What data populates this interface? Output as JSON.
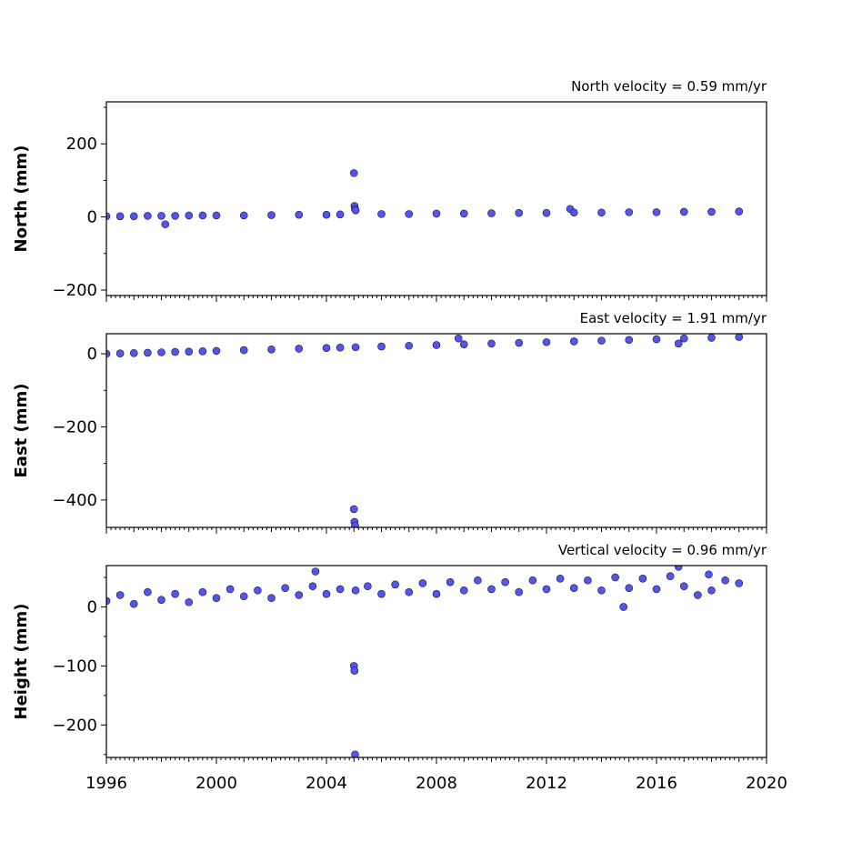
{
  "chart_data": [
    {
      "type": "scatter",
      "title": "North velocity = 0.59 mm/yr",
      "xlabel": "",
      "ylabel": "North (mm)",
      "xlim": [
        1996,
        2020
      ],
      "ylim": [
        -215,
        315
      ],
      "yticks": [
        -200,
        0,
        200
      ],
      "yticklabels": [
        "−200",
        "0",
        "200"
      ],
      "show_xticklabels": false,
      "grid": false,
      "series": [
        {
          "x": [
            1996.0,
            1996.5,
            1997.0,
            1997.5,
            1998.0,
            1998.14,
            1998.5,
            1999.0,
            1999.5,
            2000.0,
            2001.0,
            2002.0,
            2003.0,
            2004.0,
            2004.5,
            2005.0,
            2005.02,
            2005.04,
            2005.06,
            2006.0,
            2007.0,
            2008.0,
            2009.0,
            2010.0,
            2011.0,
            2012.0,
            2012.86,
            2013.0,
            2014.0,
            2015.0,
            2016.0,
            2017.0,
            2018.0,
            2019.0
          ],
          "y": [
            2,
            2,
            2,
            3,
            3,
            -20,
            3,
            4,
            4,
            4,
            4,
            5,
            6,
            6,
            7,
            120,
            30,
            22,
            18,
            8,
            8,
            9,
            9,
            10,
            11,
            11,
            22,
            12,
            12,
            13,
            13,
            14,
            14,
            15
          ]
        }
      ]
    },
    {
      "type": "scatter",
      "title": "East velocity = 1.91 mm/yr",
      "xlabel": "",
      "ylabel": "East (mm)",
      "xlim": [
        1996,
        2020
      ],
      "ylim": [
        -475,
        55
      ],
      "yticks": [
        -400,
        -200,
        0
      ],
      "yticklabels": [
        "−400",
        "−200",
        "0"
      ],
      "show_xticklabels": false,
      "grid": false,
      "series": [
        {
          "x": [
            1996.0,
            1996.5,
            1997.0,
            1997.5,
            1998.0,
            1998.5,
            1999.0,
            1999.5,
            2000.0,
            2001.0,
            2002.0,
            2003.0,
            2004.0,
            2004.5,
            2005.0,
            2005.02,
            2005.04,
            2005.06,
            2006.0,
            2007.0,
            2008.0,
            2008.8,
            2009.0,
            2010.0,
            2011.0,
            2012.0,
            2013.0,
            2014.0,
            2015.0,
            2016.0,
            2016.8,
            2017.0,
            2018.0,
            2019.0
          ],
          "y": [
            0,
            1,
            2,
            3,
            4,
            5,
            6,
            7,
            8,
            10,
            12,
            14,
            16,
            17,
            -425,
            -460,
            -470,
            18,
            20,
            22,
            24,
            42,
            26,
            28,
            30,
            32,
            34,
            36,
            38,
            40,
            28,
            42,
            44,
            46
          ]
        }
      ]
    },
    {
      "type": "scatter",
      "title": "Vertical velocity = 0.96 mm/yr",
      "xlabel": "",
      "ylabel": "Height (mm)",
      "xlim": [
        1996,
        2020
      ],
      "ylim": [
        -255,
        70
      ],
      "yticks": [
        -200,
        -100,
        0
      ],
      "yticklabels": [
        "−200",
        "−100",
        "0"
      ],
      "xticks": [
        1996,
        2000,
        2004,
        2008,
        2012,
        2016,
        2020
      ],
      "xticklabels": [
        "1996",
        "2000",
        "2004",
        "2008",
        "2012",
        "2016",
        "2020"
      ],
      "show_xticklabels": true,
      "grid": false,
      "series": [
        {
          "x": [
            1996.0,
            1996.5,
            1997.0,
            1997.5,
            1998.0,
            1998.5,
            1999.0,
            1999.5,
            2000.0,
            2000.5,
            2001.0,
            2001.5,
            2002.0,
            2002.5,
            2003.0,
            2003.5,
            2003.6,
            2004.0,
            2004.5,
            2005.0,
            2005.02,
            2005.04,
            2005.06,
            2005.5,
            2006.0,
            2006.5,
            2007.0,
            2007.5,
            2008.0,
            2008.5,
            2009.0,
            2009.5,
            2010.0,
            2010.5,
            2011.0,
            2011.5,
            2012.0,
            2012.5,
            2013.0,
            2013.5,
            2014.0,
            2014.5,
            2014.8,
            2015.0,
            2015.5,
            2016.0,
            2016.5,
            2016.8,
            2017.0,
            2017.5,
            2017.9,
            2018.0,
            2018.5,
            2019.0
          ],
          "y": [
            10,
            20,
            5,
            25,
            12,
            22,
            8,
            25,
            15,
            30,
            18,
            28,
            15,
            32,
            20,
            35,
            60,
            22,
            30,
            -100,
            -108,
            -250,
            28,
            35,
            22,
            38,
            25,
            40,
            22,
            42,
            28,
            45,
            30,
            42,
            25,
            45,
            30,
            48,
            32,
            45,
            28,
            50,
            0,
            32,
            48,
            30,
            52,
            68,
            35,
            20,
            55,
            28,
            45,
            40
          ]
        }
      ]
    }
  ]
}
